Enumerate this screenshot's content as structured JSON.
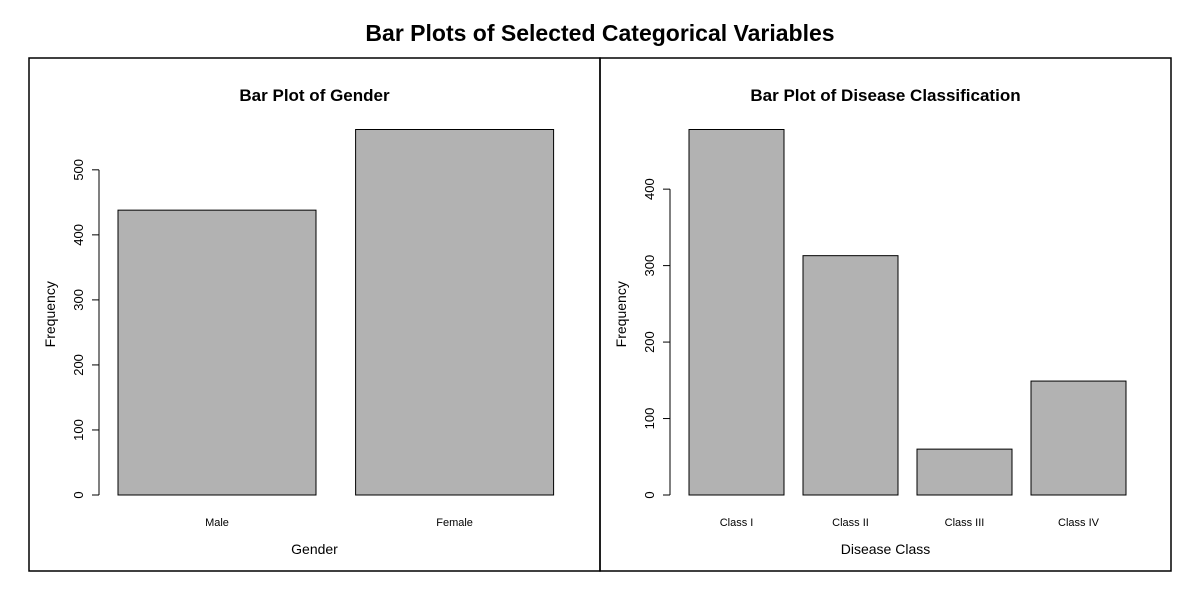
{
  "figure": {
    "title": "Bar Plots of Selected Categorical Variables",
    "bar_fill": "#b2b2b2",
    "bar_stroke": "#000000",
    "background": "#ffffff"
  },
  "chart_data": [
    {
      "type": "bar",
      "title": "Bar Plot of Gender",
      "xlabel": "Gender",
      "ylabel": "Frequency",
      "categories": [
        "Male",
        "Female"
      ],
      "values": [
        438,
        562
      ],
      "yticks": [
        0,
        100,
        200,
        300,
        400,
        500
      ],
      "ylim": [
        0,
        562
      ],
      "grid": false,
      "legend": "none"
    },
    {
      "type": "bar",
      "title": "Bar Plot of Disease Classification",
      "xlabel": "Disease Class",
      "ylabel": "Frequency",
      "categories": [
        "Class I",
        "Class II",
        "Class III",
        "Class IV"
      ],
      "values": [
        478,
        313,
        60,
        149
      ],
      "yticks": [
        0,
        100,
        200,
        300,
        400
      ],
      "ylim": [
        0,
        478
      ],
      "grid": false,
      "legend": "none"
    }
  ]
}
